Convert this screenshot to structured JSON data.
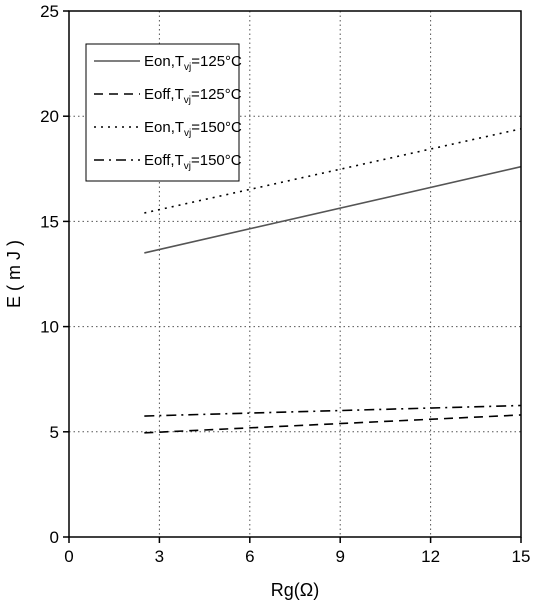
{
  "chart_data": {
    "type": "line",
    "xlabel": "Rg(Ω)",
    "ylabel": "E ( m J )",
    "xlim": [
      0,
      15
    ],
    "ylim": [
      0,
      25
    ],
    "xticks": [
      0,
      3,
      6,
      9,
      12,
      15
    ],
    "yticks": [
      0,
      5,
      10,
      15,
      20,
      25
    ],
    "grid": true,
    "legend_position": "top-left",
    "series": [
      {
        "name": "Eon,Tvj=125°C",
        "name_main": "Eon,T",
        "name_sub": "vj",
        "name_tail": "=125°C",
        "style": "solid",
        "color": "#555555",
        "x": [
          2.5,
          15
        ],
        "y": [
          13.5,
          17.6
        ]
      },
      {
        "name": "Eoff,Tvj=125°C",
        "name_main": "Eoff,T",
        "name_sub": "vj",
        "name_tail": "=125°C",
        "style": "dash",
        "color": "#000000",
        "x": [
          2.5,
          15
        ],
        "y": [
          4.95,
          5.8
        ]
      },
      {
        "name": "Eon,Tvj=150°C",
        "name_main": "Eon,T",
        "name_sub": "vj",
        "name_tail": "=150°C",
        "style": "dot",
        "color": "#000000",
        "x": [
          2.5,
          15
        ],
        "y": [
          15.4,
          19.4
        ]
      },
      {
        "name": "Eoff,Tvj=150°C",
        "name_main": "Eoff,T",
        "name_sub": "vj",
        "name_tail": "=150°C",
        "style": "dashdot",
        "color": "#000000",
        "x": [
          2.5,
          15
        ],
        "y": [
          5.75,
          6.25
        ]
      }
    ]
  }
}
